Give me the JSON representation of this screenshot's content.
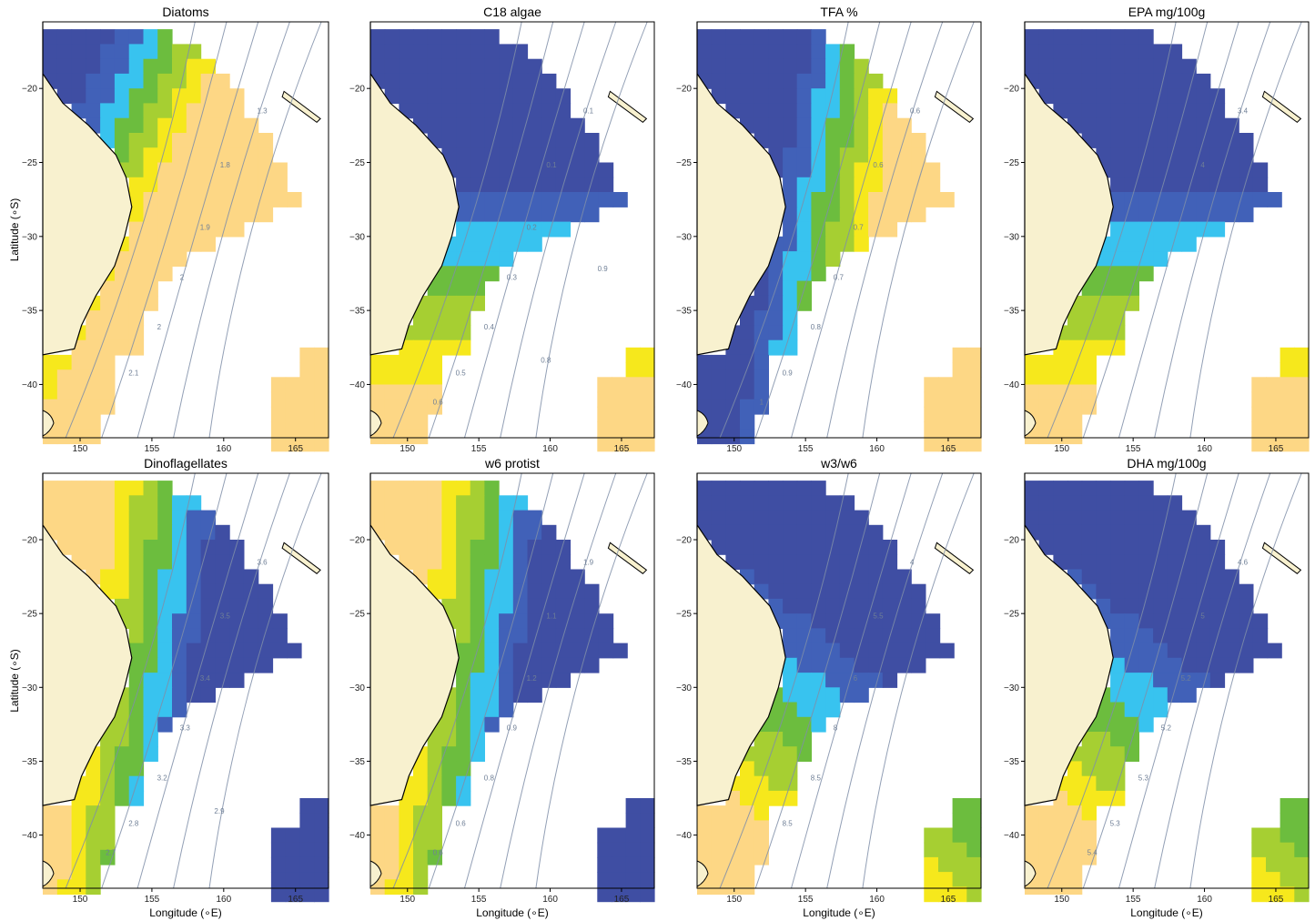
{
  "figure": {
    "xlabel": "Longitude (∘E)",
    "ylabel": "Latitude (∘S)",
    "x_ticks": [
      "150",
      "155",
      "160",
      "165"
    ],
    "y_ticks": [
      "−20",
      "−25",
      "−30",
      "−35",
      "−40"
    ]
  },
  "colors": {
    "land": "#f8f1cf",
    "coast": "#000000",
    "contour": "#7f8ea8",
    "scale": [
      "#3f4ea3",
      "#4161b8",
      "#38c3ef",
      "#6cbd3e",
      "#a6cf32",
      "#f6e81c",
      "#fdd785"
    ]
  },
  "chart_data": [
    {
      "type": "heatmap",
      "title": "Diatoms",
      "pattern": "diagonal-blue-to-yellow",
      "contour_labels": [
        "1.3",
        "1.8",
        "1.9",
        "2",
        "2",
        "2.1"
      ]
    },
    {
      "type": "heatmap",
      "title": "C18 algae",
      "pattern": "north-blue-south-green",
      "contour_labels": [
        "0.1",
        "0.1",
        "0.2",
        "0.3",
        "0.4",
        "0.5",
        "0.6",
        "0.8",
        "0.9"
      ]
    },
    {
      "type": "heatmap",
      "title": "TFA %",
      "pattern": "west-blue-east-yellow",
      "contour_labels": [
        "0.6",
        "0.6",
        "0.7",
        "0.7",
        "0.8",
        "0.9",
        "1"
      ]
    },
    {
      "type": "heatmap",
      "title": "EPA mg/100g",
      "pattern": "north-blue-south-green",
      "contour_labels": [
        "3.4",
        "4"
      ]
    },
    {
      "type": "heatmap",
      "title": "Dinoflagellates",
      "pattern": "west-yellow-east-blue",
      "contour_labels": [
        "3.6",
        "3.5",
        "3.4",
        "3.3",
        "3.2",
        "2.8",
        "2.7",
        "2.9"
      ]
    },
    {
      "type": "heatmap",
      "title": "w6 protist",
      "pattern": "west-yellow-east-blue",
      "contour_labels": [
        "1.9",
        "1.1",
        "1.2",
        "0.9",
        "0.8",
        "0.6",
        "0.6"
      ]
    },
    {
      "type": "heatmap",
      "title": "w3/w6",
      "pattern": "north-blue-south-yellow",
      "contour_labels": [
        "4",
        "5.5",
        "6",
        "8",
        "8.5",
        "8.5"
      ]
    },
    {
      "type": "heatmap",
      "title": "DHA mg/100g",
      "pattern": "north-blue-south-yellow",
      "contour_labels": [
        "4.6",
        "5",
        "5.2",
        "5.2",
        "5.3",
        "5.3",
        "5.4"
      ]
    }
  ]
}
